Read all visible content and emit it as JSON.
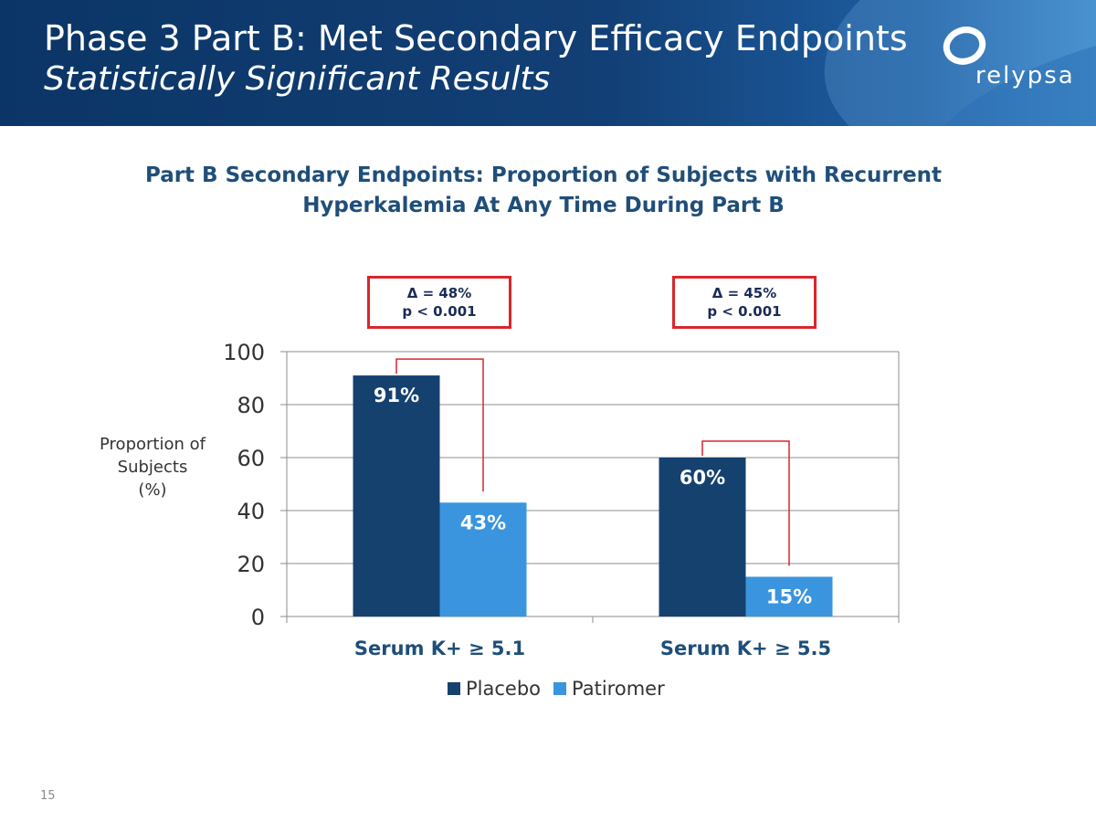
{
  "slide": {
    "title": "Phase 3 Part B: Met Secondary Efficacy Endpoints",
    "subtitle": "Statistically Significant Results",
    "logo_text": "relypsa",
    "page_number": "15"
  },
  "annotations": [
    {
      "delta": "Δ = 48%",
      "p": "p < 0.001"
    },
    {
      "delta": "Δ = 45%",
      "p": "p < 0.001"
    }
  ],
  "colors": {
    "placebo": "#15416f",
    "patiromer": "#3a95de",
    "annotation": "#d9262c",
    "title": "#1f4e79"
  },
  "chart_data": {
    "type": "bar",
    "title": "Part B Secondary Endpoints: Proportion of Subjects with Recurrent Hyperkalemia At Any Time During Part B",
    "ylabel_lines": [
      "Proportion of",
      "Subjects",
      "(%)"
    ],
    "categories": [
      "Serum K+ ≥ 5.1",
      "Serum K+ ≥ 5.5"
    ],
    "series": [
      {
        "name": "Placebo",
        "values": [
          91,
          60
        ],
        "labels": [
          "91%",
          "60%"
        ]
      },
      {
        "name": "Patiromer",
        "values": [
          43,
          15
        ],
        "labels": [
          "43%",
          "15%"
        ]
      }
    ],
    "ylim": [
      0,
      100
    ],
    "yticks": [
      0,
      20,
      40,
      60,
      80,
      100
    ],
    "grid": true,
    "legend": "bottom"
  }
}
